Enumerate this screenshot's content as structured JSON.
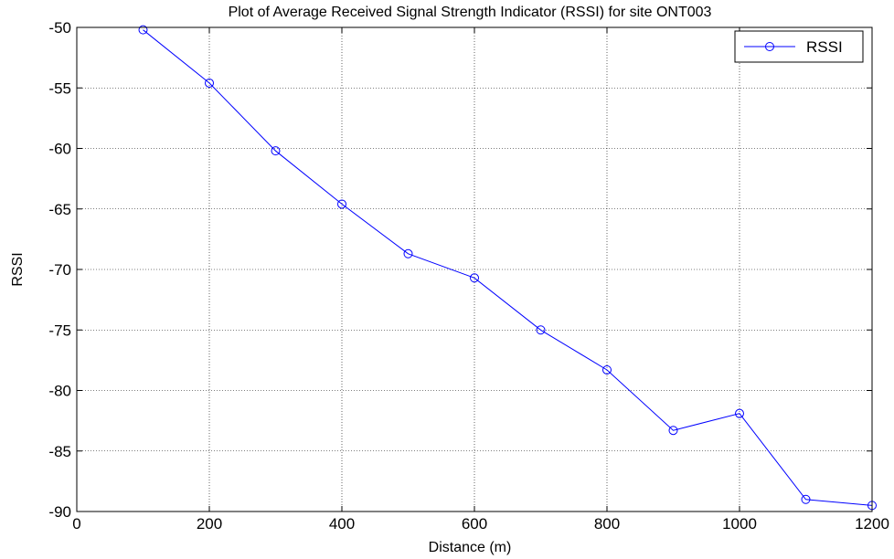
{
  "chart_data": {
    "type": "line",
    "title": "Plot of Average Received Signal Strength Indicator (RSSI) for site ONT003",
    "xlabel": "Distance (m)",
    "ylabel": "RSSI",
    "xlim": [
      0,
      1200
    ],
    "ylim": [
      -90,
      -50
    ],
    "xticks": [
      0,
      200,
      400,
      600,
      800,
      1000,
      1200
    ],
    "yticks": [
      -90,
      -85,
      -80,
      -75,
      -70,
      -65,
      -60,
      -55,
      -50
    ],
    "xtick_labels": [
      "0",
      "200",
      "400",
      "600",
      "800",
      "1000",
      "1200"
    ],
    "ytick_labels": [
      "-90",
      "-85",
      "-80",
      "-75",
      "-70",
      "-65",
      "-60",
      "-55",
      "-50"
    ],
    "grid": true,
    "grid_style": "dotted",
    "legend_position": "top-right",
    "series": [
      {
        "name": "RSSI",
        "color": "#0000ff",
        "marker": "circle",
        "x": [
          100,
          200,
          300,
          400,
          500,
          600,
          700,
          800,
          900,
          1000,
          1100,
          1200
        ],
        "y": [
          -50.2,
          -54.6,
          -60.2,
          -64.6,
          -68.7,
          -70.7,
          -75.0,
          -78.3,
          -83.3,
          -81.9,
          -89.0,
          -89.5
        ]
      }
    ]
  }
}
